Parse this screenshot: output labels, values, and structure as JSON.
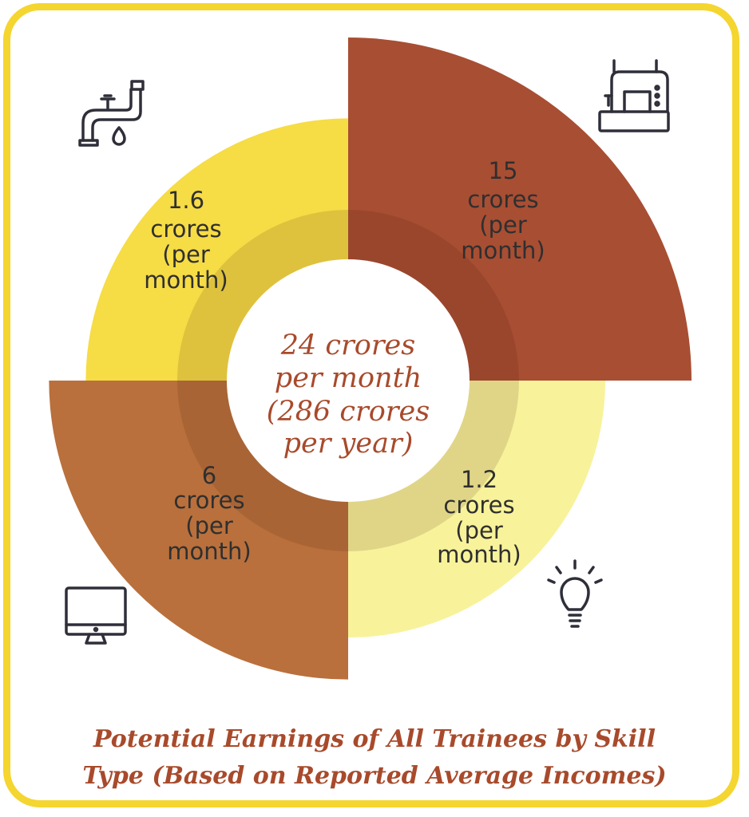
{
  "chart_data": {
    "type": "pie",
    "subtype": "rose-donut",
    "title_lines": [
      "Potential Earnings of All Trainees by Skill",
      "Type (Based on Reported Average Incomes)"
    ],
    "center_label_lines": [
      "24 crores",
      "per month",
      "(286 crores",
      "per year)"
    ],
    "total_per_month_crores": 24,
    "total_per_year_crores": 286,
    "segments": [
      {
        "value": 15,
        "unit_lines": [
          "crores",
          "(per",
          "month)"
        ],
        "value_label": "15",
        "color": "#a84e33",
        "icon": "sewing-machine-icon"
      },
      {
        "value": 1.2,
        "unit_lines": [
          "crores",
          "(per",
          "month)"
        ],
        "value_label": "1.2",
        "color": "#f8f29a",
        "icon": "light-bulb-icon"
      },
      {
        "value": 6,
        "unit_lines": [
          "crores",
          "(per",
          "month)"
        ],
        "value_label": "6",
        "color": "#b9703c",
        "icon": "computer-monitor-icon"
      },
      {
        "value": 1.6,
        "unit_lines": [
          "crores",
          "(per",
          "month)"
        ],
        "value_label": "1.6",
        "color": "#f6dc45",
        "icon": "water-tap-icon"
      }
    ],
    "legend": "none",
    "grid": false
  }
}
